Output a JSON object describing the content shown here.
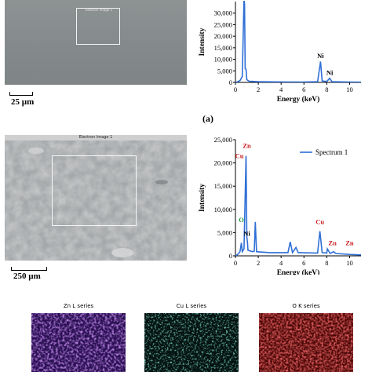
{
  "top_sem": {
    "caption": "Electron Image 1",
    "scale_label": "25 µm"
  },
  "panel_a_label": "(a)",
  "mid_sem": {
    "caption": "Electron Image 1",
    "scale_label": "250 µm"
  },
  "maps": [
    {
      "title": "Zn L series",
      "color": "#7a2fd0"
    },
    {
      "title": "Cu L series",
      "color": "#1fa88f"
    },
    {
      "title": "O K series",
      "color": "#c81e1e"
    }
  ],
  "chart_data": [
    {
      "type": "line",
      "title": "",
      "xlabel": "Energy (keV)",
      "ylabel": "Intensity",
      "xlim": [
        0,
        11
      ],
      "ylim": [
        0,
        35000
      ],
      "x_ticks": [
        "0",
        "2",
        "4",
        "6",
        "8",
        "10"
      ],
      "y_ticks": [
        "0",
        "5,000",
        "10,000",
        "15,000",
        "20,000",
        "25,000",
        "30,000"
      ],
      "series": [
        {
          "color": "#2f6fd6",
          "points": [
            [
              0.0,
              0
            ],
            [
              0.2,
              300
            ],
            [
              0.4,
              800
            ],
            [
              0.6,
              2500
            ],
            [
              0.75,
              36000
            ],
            [
              0.8,
              34000
            ],
            [
              0.85,
              6000
            ],
            [
              0.93,
              5600
            ],
            [
              1.0,
              1200
            ],
            [
              1.2,
              500
            ],
            [
              2,
              300
            ],
            [
              4,
              200
            ],
            [
              6,
              150
            ],
            [
              7.2,
              300
            ],
            [
              7.45,
              9000
            ],
            [
              7.6,
              600
            ],
            [
              8.0,
              400
            ],
            [
              8.26,
              1800
            ],
            [
              8.45,
              300
            ],
            [
              10,
              150
            ],
            [
              11,
              100
            ]
          ]
        }
      ],
      "annotations": [
        {
          "text": "Ni",
          "x": 7.45,
          "y": 10500,
          "color": "#000000"
        },
        {
          "text": "Ni",
          "x": 8.26,
          "y": 3200,
          "color": "#000000"
        }
      ]
    },
    {
      "type": "line",
      "title": "",
      "xlabel": "Energy (keV)",
      "ylabel": "Intensity",
      "xlim": [
        0,
        11
      ],
      "ylim": [
        0,
        25000
      ],
      "x_ticks": [
        "0",
        "2",
        "4",
        "6",
        "8",
        "10"
      ],
      "y_ticks": [
        "0",
        "5,000",
        "10,000",
        "15,000",
        "20,000",
        "25,000"
      ],
      "legend": {
        "position": "top-right",
        "entries": [
          "Spectrum 1"
        ]
      },
      "series": [
        {
          "name": "Spectrum 1",
          "color": "#2f6fd6",
          "points": [
            [
              0.0,
              0
            ],
            [
              0.2,
              300
            ],
            [
              0.4,
              900
            ],
            [
              0.52,
              2800
            ],
            [
              0.6,
              900
            ],
            [
              0.75,
              1500
            ],
            [
              0.93,
              21500
            ],
            [
              1.0,
              4000
            ],
            [
              1.05,
              3000
            ],
            [
              1.1,
              1200
            ],
            [
              1.5,
              900
            ],
            [
              1.65,
              1000
            ],
            [
              1.74,
              7300
            ],
            [
              1.85,
              900
            ],
            [
              3,
              700
            ],
            [
              4.6,
              700
            ],
            [
              4.8,
              3000
            ],
            [
              5.0,
              700
            ],
            [
              5.3,
              1800
            ],
            [
              5.5,
              700
            ],
            [
              7.2,
              600
            ],
            [
              7.4,
              5300
            ],
            [
              7.6,
              700
            ],
            [
              8.0,
              600
            ],
            [
              8.05,
              1500
            ],
            [
              8.3,
              500
            ],
            [
              8.6,
              900
            ],
            [
              8.8,
              500
            ],
            [
              10,
              300
            ],
            [
              11,
              200
            ]
          ]
        }
      ],
      "annotations": [
        {
          "text": "Zn",
          "x": 1.0,
          "y": 23200,
          "color": "#c81e1e"
        },
        {
          "text": "Cu",
          "x": 0.35,
          "y": 21000,
          "color": "#c81e1e"
        },
        {
          "text": "O",
          "x": 0.52,
          "y": 7300,
          "color": "#1a9a3a"
        },
        {
          "text": "Ni",
          "x": 1.0,
          "y": 4300,
          "color": "#000000"
        },
        {
          "text": "Cu",
          "x": 7.4,
          "y": 6800,
          "color": "#c81e1e"
        },
        {
          "text": "Zn",
          "x": 8.5,
          "y": 2300,
          "color": "#c81e1e"
        },
        {
          "text": "Zn",
          "x": 10.0,
          "y": 2300,
          "color": "#c81e1e"
        }
      ]
    }
  ]
}
